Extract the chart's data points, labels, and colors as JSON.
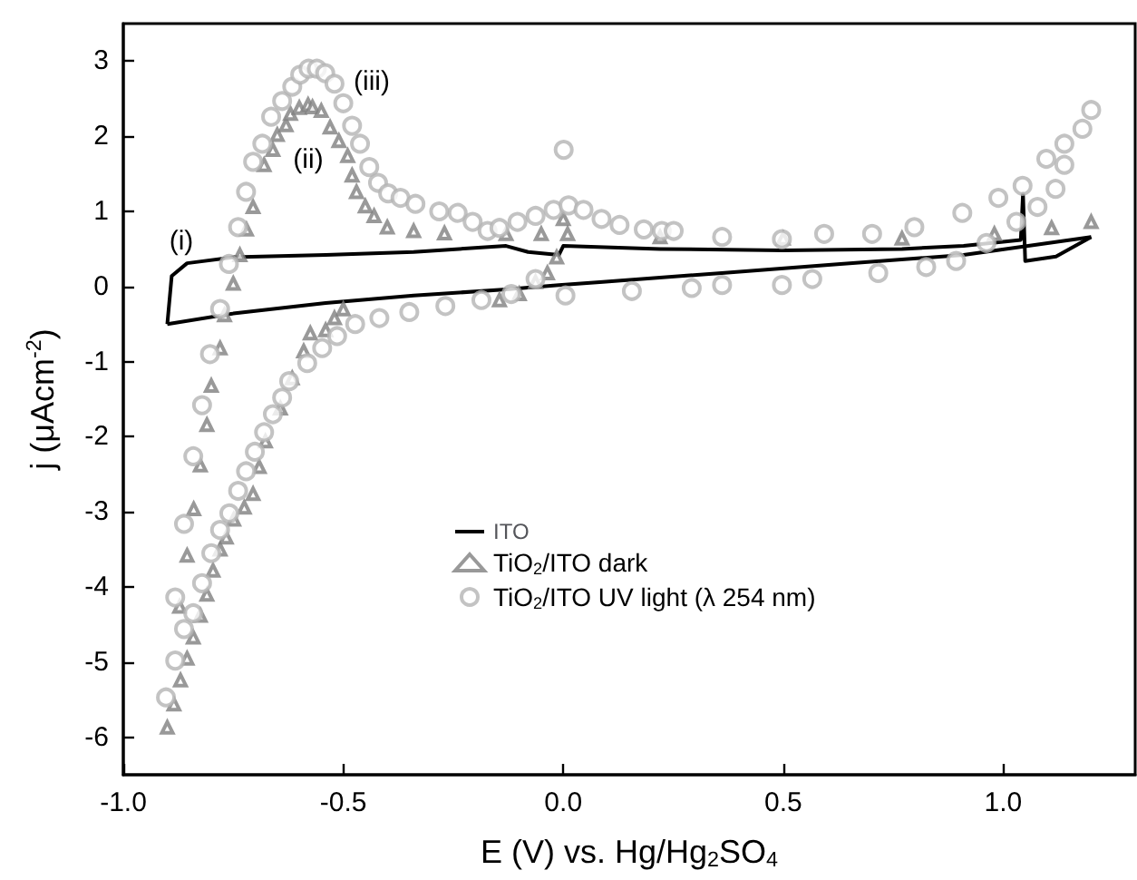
{
  "chart_data": {
    "type": "line",
    "xlabel": "E (V) vs. Hg/Hg$_{2}$SO$_{4}$",
    "ylabel": "j (μAcm$^{-2}$)",
    "xlim": [
      -1.0,
      1.3
    ],
    "ylim": [
      -6.5,
      3.5
    ],
    "xticks": [
      {
        "value": -1.0,
        "label": "-1.0"
      },
      {
        "value": -0.5,
        "label": "-0.5"
      },
      {
        "value": 0,
        "label": "0.0"
      },
      {
        "value": 0.5,
        "label": "0.5"
      },
      {
        "value": 1.0,
        "label": "1.0"
      }
    ],
    "yticks": [
      -6,
      -5,
      -4,
      -3,
      -2,
      -1,
      0,
      1,
      2,
      3
    ],
    "grid": false,
    "legend": "bottom",
    "annotations": [
      "(i)",
      "(ii)",
      "(iii)"
    ],
    "series": [
      {
        "name": "ITO",
        "color": "#000000",
        "marker": "none",
        "line_style": "solid",
        "x": [
          -0.9,
          -0.89,
          -0.855,
          -0.75,
          -0.54,
          -0.34,
          -0.13,
          -0.08,
          -0.01,
          0.0,
          0.22,
          0.5,
          0.77,
          0.91,
          1.04,
          1.045,
          1.05,
          1.12,
          1.2
        ],
        "values": [
          -0.5,
          0.14,
          0.31,
          0.39,
          0.42,
          0.46,
          0.54,
          0.46,
          0.42,
          0.54,
          0.5,
          0.48,
          0.5,
          0.54,
          0.62,
          1.24,
          0.34,
          0.4,
          0.66
        ]
      },
      {
        "color": "#000000",
        "marker": "none",
        "line_style": "solid",
        "x": [
          -0.9,
          -0.75,
          -0.54,
          -0.34,
          -0.13,
          -0.01,
          0.09,
          0.36,
          0.63,
          0.91,
          1.2
        ],
        "values": [
          -0.5,
          -0.36,
          -0.22,
          -0.12,
          -0.04,
          0.02,
          0.06,
          0.18,
          0.3,
          0.42,
          0.66
        ]
      },
      {
        "name": "TiO$_{2}$/ITO dark",
        "type": "scatter",
        "color": "#7f7f7f",
        "marker": "triangle",
        "x": [
          -0.9,
          -0.885,
          -0.87,
          -0.872,
          -0.855,
          -0.84,
          -0.825,
          -0.81,
          -0.8,
          -0.78,
          -0.77,
          -0.75,
          -0.735,
          -0.72,
          -0.705,
          -0.68,
          -0.66,
          -0.65,
          -0.63,
          -0.62,
          -0.6,
          -0.58,
          -0.57,
          -0.55,
          -0.53,
          -0.51,
          -0.49,
          -0.48,
          -0.47,
          -0.45,
          -0.43,
          -0.4,
          -0.34,
          -0.27,
          -0.13,
          -0.05,
          0.0,
          0.01,
          0.22,
          0.5,
          0.77,
          0.98,
          1.11,
          1.2,
          -0.015,
          -0.036,
          -0.063,
          -0.1,
          -0.145,
          -0.5,
          -0.52,
          -0.54,
          -0.575,
          -0.59,
          -0.616,
          -0.643,
          -0.677,
          -0.691,
          -0.705,
          -0.725,
          -0.749,
          -0.766,
          -0.78,
          -0.796,
          -0.81,
          -0.825,
          -0.841,
          -0.855
        ],
        "values": [
          -5.87,
          -5.56,
          -5.24,
          -4.26,
          -3.58,
          -2.96,
          -2.38,
          -1.84,
          -1.32,
          -0.82,
          -0.38,
          0.04,
          0.42,
          0.76,
          1.06,
          1.62,
          1.82,
          2.02,
          2.15,
          2.3,
          2.38,
          2.42,
          2.39,
          2.34,
          2.12,
          1.94,
          1.74,
          1.48,
          1.26,
          1.07,
          0.94,
          0.79,
          0.74,
          0.71,
          0.7,
          0.7,
          0.9,
          0.7,
          0.66,
          0.64,
          0.64,
          0.7,
          0.78,
          0.86,
          0.39,
          0.18,
          0.06,
          -0.1,
          -0.18,
          -0.3,
          -0.42,
          -0.58,
          -0.62,
          -0.86,
          -1.22,
          -1.62,
          -2.06,
          -2.4,
          -2.76,
          -2.94,
          -3.1,
          -3.34,
          -3.5,
          -3.78,
          -4.1,
          -4.38,
          -4.67,
          -4.95
        ]
      },
      {
        "name": "TiO$_{2}$/ITO UV light (λ 254 nm)",
        "type": "scatter",
        "color": "#b4b4b4",
        "marker": "circle",
        "x": [
          -0.903,
          -0.882,
          -0.862,
          -0.841,
          -0.821,
          -0.803,
          -0.78,
          -0.76,
          -0.739,
          -0.721,
          -0.705,
          -0.684,
          -0.664,
          -0.639,
          -0.616,
          -0.598,
          -0.579,
          -0.56,
          -0.541,
          -0.52,
          -0.5,
          -0.48,
          -0.462,
          -0.441,
          -0.421,
          -0.398,
          -0.37,
          -0.336,
          -0.282,
          -0.24,
          -0.206,
          -0.172,
          -0.145,
          -0.104,
          -0.063,
          -0.022,
          0.001,
          0.012,
          0.046,
          0.087,
          0.128,
          0.183,
          0.224,
          0.251,
          0.361,
          0.497,
          0.593,
          0.702,
          0.798,
          0.907,
          0.989,
          1.044,
          1.098,
          1.139,
          1.18,
          1.2,
          1.139,
          1.119,
          1.078,
          1.03,
          0.962,
          0.893,
          0.825,
          0.716,
          0.566,
          0.497,
          0.361,
          0.292,
          0.156,
          0.005,
          -0.063,
          -0.118,
          -0.186,
          -0.268,
          -0.35,
          -0.418,
          -0.473,
          -0.514,
          -0.548,
          -0.582,
          -0.623,
          -0.639,
          -0.66,
          -0.68,
          -0.701,
          -0.721,
          -0.739,
          -0.759,
          -0.78,
          -0.8,
          -0.821,
          -0.841,
          -0.862,
          -0.882
        ],
        "values": [
          -5.47,
          -4.14,
          -3.16,
          -2.26,
          -1.58,
          -0.9,
          -0.3,
          0.3,
          0.79,
          1.26,
          1.66,
          1.9,
          2.26,
          2.47,
          2.66,
          2.82,
          2.9,
          2.9,
          2.84,
          2.7,
          2.44,
          2.14,
          1.9,
          1.59,
          1.38,
          1.24,
          1.18,
          1.1,
          1.0,
          0.98,
          0.86,
          0.74,
          0.78,
          0.86,
          0.94,
          1.02,
          1.82,
          1.08,
          1.02,
          0.9,
          0.82,
          0.76,
          0.74,
          0.74,
          0.66,
          0.63,
          0.7,
          0.7,
          0.79,
          0.98,
          1.18,
          1.34,
          1.7,
          1.9,
          2.1,
          2.35,
          1.62,
          1.3,
          1.06,
          0.86,
          0.58,
          0.34,
          0.26,
          0.18,
          0.1,
          0.02,
          0.02,
          -0.02,
          -0.06,
          -0.12,
          0.1,
          -0.1,
          -0.18,
          -0.26,
          -0.34,
          -0.42,
          -0.5,
          -0.66,
          -0.82,
          -1.02,
          -1.26,
          -1.48,
          -1.7,
          -1.94,
          -2.2,
          -2.46,
          -2.72,
          -3.02,
          -3.24,
          -3.55,
          -3.95,
          -4.35,
          -4.56,
          -4.98
        ]
      }
    ]
  }
}
